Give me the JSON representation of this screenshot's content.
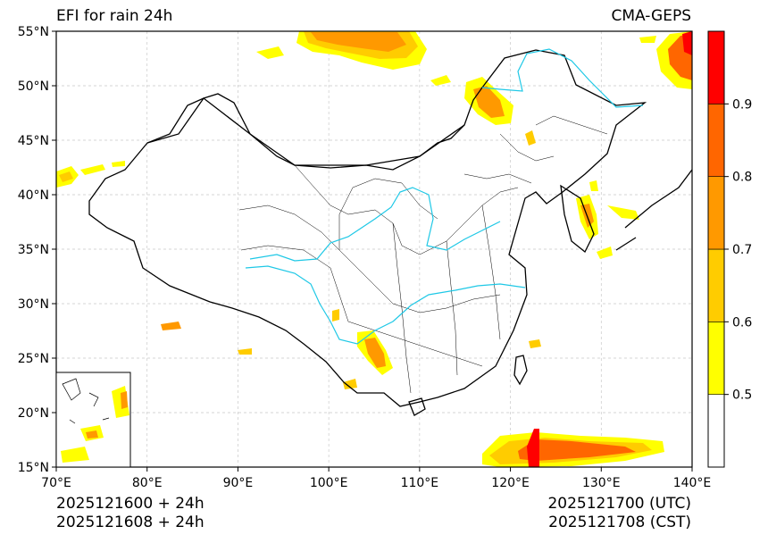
{
  "title_left": "EFI for rain 24h",
  "title_right": "CMA-GEPS",
  "map": {
    "lon_range": [
      70,
      140
    ],
    "lat_range": [
      15,
      55
    ],
    "lon_ticks": [
      "70°E",
      "80°E",
      "90°E",
      "100°E",
      "110°E",
      "120°E",
      "130°E",
      "140°E"
    ],
    "lat_ticks": [
      "15°N",
      "20°N",
      "25°N",
      "30°N",
      "35°N",
      "40°N",
      "45°N",
      "50°N",
      "55°N"
    ],
    "gridlines": true,
    "inset_map": true
  },
  "colorbar": {
    "levels": [
      {
        "from": 0.4,
        "to": 0.5,
        "color": "#ffffff"
      },
      {
        "from": 0.5,
        "to": 0.6,
        "color": "#ffff00"
      },
      {
        "from": 0.6,
        "to": 0.7,
        "color": "#ffcc00"
      },
      {
        "from": 0.7,
        "to": 0.8,
        "color": "#ff9900"
      },
      {
        "from": 0.8,
        "to": 0.9,
        "color": "#ff6600"
      },
      {
        "from": 0.9,
        "to": 1.0,
        "color": "#ff0000"
      }
    ],
    "tick_labels": [
      "0.5",
      "0.6",
      "0.7",
      "0.8",
      "0.9"
    ]
  },
  "footer": {
    "left_line1": "2025121600 + 24h",
    "left_line2": "2025121608 + 24h",
    "right_line1": "2025121700 (UTC)",
    "right_line2": "2025121708 (CST)"
  }
}
